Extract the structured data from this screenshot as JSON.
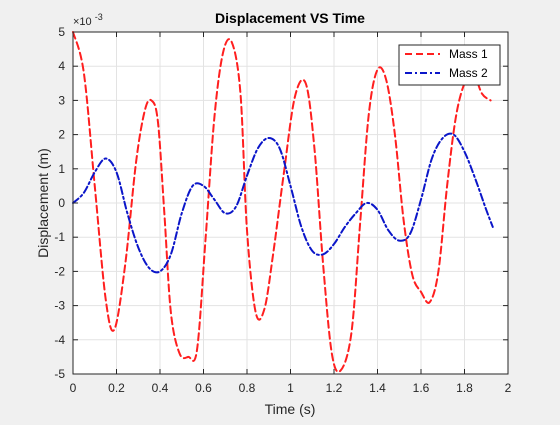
{
  "colors": {
    "figure_background": "#f0f0f0",
    "axes_background": "#ffffff",
    "grid": "#e3e3e3",
    "axis": "#262626",
    "mass1": "#ff1f1f",
    "mass2": "#0b16c9"
  },
  "chart_data": {
    "type": "line",
    "title": "Displacement VS Time",
    "xlabel": "Time (s)",
    "ylabel": "Displacement (m)",
    "xlim": [
      0,
      2
    ],
    "ylim": [
      -5,
      5
    ],
    "x_ticks": [
      0,
      0.2,
      0.4,
      0.6,
      0.8,
      1,
      1.2,
      1.4,
      1.6,
      1.8,
      2
    ],
    "x_tick_labels": [
      "0",
      "0.2",
      "0.4",
      "0.6",
      "0.8",
      "1",
      "1.2",
      "1.4",
      "1.6",
      "1.8",
      "2"
    ],
    "y_ticks": [
      -5,
      -4,
      -3,
      -2,
      -1,
      0,
      1,
      2,
      3,
      4,
      5
    ],
    "y_tick_labels": [
      "-5",
      "-4",
      "-3",
      "-2",
      "-1",
      "0",
      "1",
      "2",
      "3",
      "4",
      "5"
    ],
    "y_exponent_label": "×10",
    "y_exponent_power": "-3",
    "grid": true,
    "legend_position": "top-right",
    "series": [
      {
        "name": "Mass 1",
        "line_style": "dashed",
        "x": [
          0.0,
          0.05,
          0.1,
          0.15,
          0.19,
          0.24,
          0.29,
          0.33,
          0.36,
          0.39,
          0.42,
          0.45,
          0.49,
          0.53,
          0.57,
          0.61,
          0.65,
          0.69,
          0.73,
          0.77,
          0.8,
          0.84,
          0.88,
          0.92,
          0.97,
          1.02,
          1.07,
          1.11,
          1.15,
          1.19,
          1.23,
          1.28,
          1.32,
          1.36,
          1.4,
          1.44,
          1.48,
          1.52,
          1.56,
          1.6,
          1.64,
          1.68,
          1.72,
          1.76,
          1.8,
          1.84,
          1.88,
          1.92
        ],
        "y": [
          5.0,
          3.8,
          0.5,
          -2.8,
          -3.7,
          -1.8,
          1.2,
          2.7,
          3.0,
          2.4,
          -0.3,
          -3.2,
          -4.4,
          -4.5,
          -4.3,
          -1.0,
          2.5,
          4.4,
          4.7,
          3.2,
          -0.8,
          -3.2,
          -3.1,
          -1.5,
          0.9,
          3.1,
          3.5,
          1.6,
          -1.8,
          -4.4,
          -4.9,
          -3.8,
          -0.6,
          2.6,
          3.9,
          3.6,
          2.0,
          -0.5,
          -2.1,
          -2.6,
          -2.9,
          -2.0,
          0.5,
          2.5,
          3.5,
          3.8,
          3.2,
          3.0
        ]
      },
      {
        "name": "Mass 2",
        "line_style": "dash-dot",
        "x": [
          0.0,
          0.05,
          0.1,
          0.15,
          0.2,
          0.25,
          0.3,
          0.35,
          0.4,
          0.45,
          0.5,
          0.55,
          0.6,
          0.65,
          0.7,
          0.75,
          0.8,
          0.85,
          0.9,
          0.95,
          1.0,
          1.05,
          1.1,
          1.15,
          1.2,
          1.25,
          1.3,
          1.35,
          1.4,
          1.45,
          1.5,
          1.55,
          1.6,
          1.65,
          1.7,
          1.75,
          1.8,
          1.85,
          1.9,
          1.93
        ],
        "y": [
          0.0,
          0.3,
          0.9,
          1.3,
          0.9,
          -0.3,
          -1.3,
          -1.9,
          -2.0,
          -1.5,
          -0.3,
          0.5,
          0.5,
          0.1,
          -0.3,
          -0.1,
          0.8,
          1.6,
          1.9,
          1.6,
          0.5,
          -0.7,
          -1.4,
          -1.5,
          -1.2,
          -0.7,
          -0.3,
          0.0,
          -0.2,
          -0.8,
          -1.1,
          -0.9,
          0.1,
          1.3,
          1.9,
          2.0,
          1.5,
          0.7,
          -0.2,
          -0.7
        ]
      }
    ]
  }
}
